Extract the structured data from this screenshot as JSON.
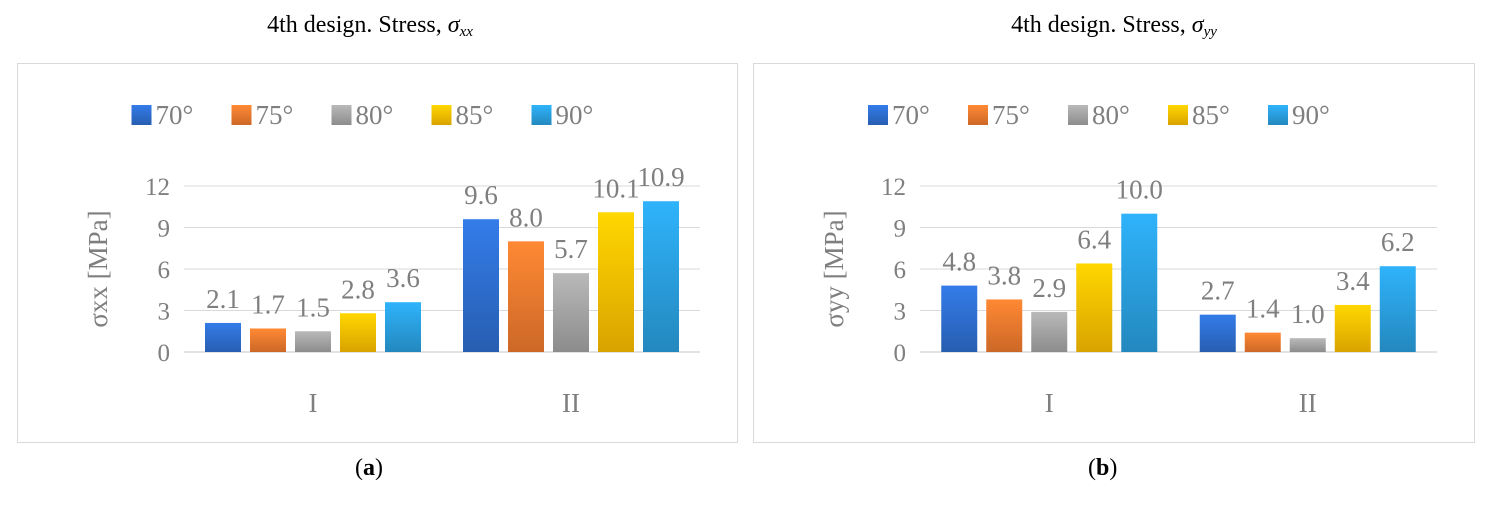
{
  "series_colors": {
    "70°": "#2e6fd0",
    "75°": "#f07a2e",
    "80°": "#a5a5a5",
    "85°": "#ffc000",
    "90°": "#2aa0e0"
  },
  "panels": [
    {
      "title_text": "4th design. Stress, ",
      "title_symbol": "σ",
      "title_sub": "xx",
      "panel_label": "a"
    },
    {
      "title_text": "4th design. Stress, ",
      "title_symbol": "σ",
      "title_sub": "yy",
      "panel_label": "b"
    }
  ],
  "chart_data": [
    {
      "type": "bar",
      "categories": [
        "I",
        "II"
      ],
      "ylabel": "σxx [MPa]",
      "ylim": [
        0,
        12
      ],
      "yticks": [
        0,
        3,
        6,
        9,
        12
      ],
      "grid": true,
      "legend_position": "top",
      "series": [
        {
          "name": "70°",
          "values": [
            2.1,
            9.6
          ]
        },
        {
          "name": "75°",
          "values": [
            1.7,
            8.0
          ]
        },
        {
          "name": "80°",
          "values": [
            1.5,
            5.7
          ]
        },
        {
          "name": "85°",
          "values": [
            2.8,
            10.1
          ]
        },
        {
          "name": "90°",
          "values": [
            3.6,
            10.9
          ]
        }
      ]
    },
    {
      "type": "bar",
      "categories": [
        "I",
        "II"
      ],
      "ylabel": "σyy [MPa]",
      "ylim": [
        0,
        12
      ],
      "yticks": [
        0,
        3,
        6,
        9,
        12
      ],
      "grid": true,
      "legend_position": "top",
      "series": [
        {
          "name": "70°",
          "values": [
            4.8,
            2.7
          ]
        },
        {
          "name": "75°",
          "values": [
            3.8,
            1.4
          ]
        },
        {
          "name": "80°",
          "values": [
            2.9,
            1.0
          ]
        },
        {
          "name": "85°",
          "values": [
            6.4,
            3.4
          ]
        },
        {
          "name": "90°",
          "values": [
            10.0,
            6.2
          ]
        }
      ]
    }
  ]
}
